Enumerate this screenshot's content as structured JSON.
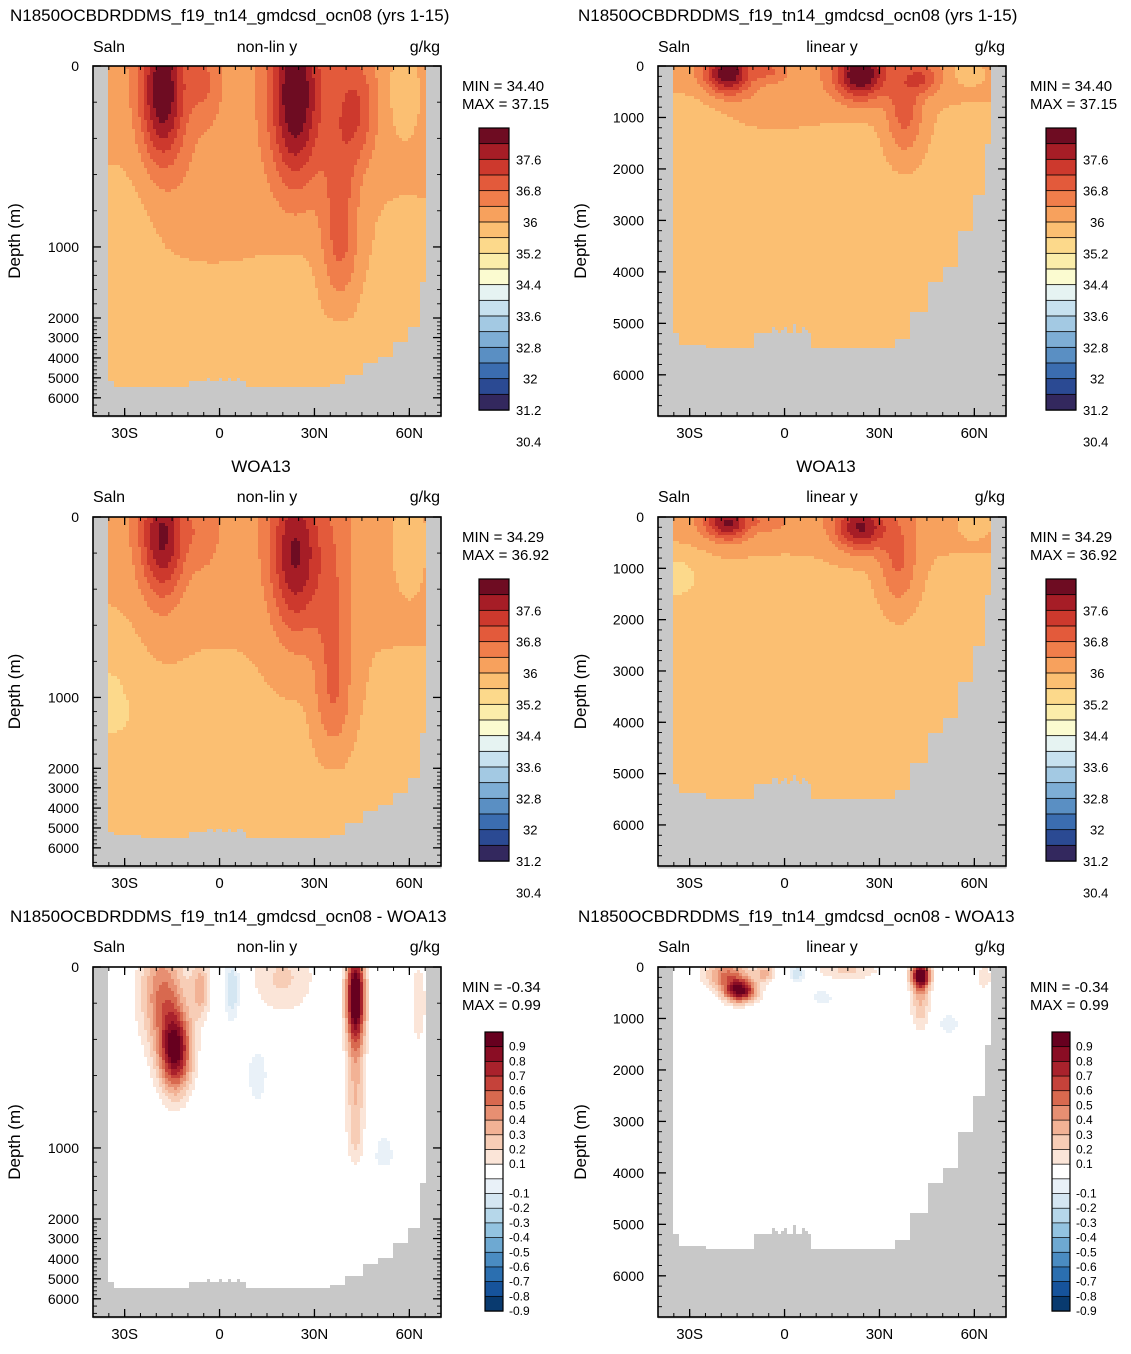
{
  "figure": {
    "colors": {
      "land": "#c8c8c8",
      "salinity_levels": [
        "#33285e",
        "#2b4a93",
        "#3b6db0",
        "#5a8fc3",
        "#7eaed5",
        "#a3c9e3",
        "#c7e1ef",
        "#e6f3f2",
        "#fbfbd0",
        "#fbedaa",
        "#fcd98b",
        "#fbbf72",
        "#f7a15d",
        "#f07e4b",
        "#e35a3b",
        "#cd392d",
        "#a61d26",
        "#6e0c22"
      ],
      "anomaly_levels": [
        "#093a6f",
        "#16539b",
        "#2b6fb0",
        "#4a8cc2",
        "#6ea9d2",
        "#93c3e0",
        "#b6d7ea",
        "#d4e6f2",
        "#e9f1f8",
        "#ffffff",
        "#fbe5d8",
        "#f7cdb6",
        "#f2b295",
        "#e78f72",
        "#d8694f",
        "#c5423a",
        "#a9222c",
        "#8a0d24",
        "#67001f"
      ]
    },
    "panels": [
      {
        "id": "model-nonlin",
        "title": "N1850OCBDRDDMS_f19_tn14_gmdcsd_ocn08 (yrs 1-15)",
        "left_label": "Saln",
        "center_label": "non-lin y",
        "right_label": "g/kg",
        "min_text": "MIN =  34.40",
        "max_text": "MAX =  37.15",
        "ylabel": "Depth (m)"
      },
      {
        "id": "model-linear",
        "title": "N1850OCBDRDDMS_f19_tn14_gmdcsd_ocn08 (yrs 1-15)",
        "left_label": "Saln",
        "center_label": "linear y",
        "right_label": "g/kg",
        "min_text": "MIN =  34.40",
        "max_text": "MAX =  37.15",
        "ylabel": "Depth (m)"
      },
      {
        "id": "obs-nonlin",
        "title": "WOA13",
        "left_label": "Saln",
        "center_label": "non-lin y",
        "right_label": "g/kg",
        "min_text": "MIN =  34.29",
        "max_text": "MAX =  36.92",
        "ylabel": "Depth (m)"
      },
      {
        "id": "obs-linear",
        "title": "WOA13",
        "left_label": "Saln",
        "center_label": "linear y",
        "right_label": "g/kg",
        "min_text": "MIN =  34.29",
        "max_text": "MAX =  36.92",
        "ylabel": "Depth (m)"
      },
      {
        "id": "diff-nonlin",
        "title": "N1850OCBDRDDMS_f19_tn14_gmdcsd_ocn08 - WOA13",
        "left_label": "Saln",
        "center_label": "non-lin y",
        "right_label": "g/kg",
        "min_text": "MIN =  -0.34",
        "max_text": "MAX =   0.99",
        "ylabel": "Depth (m)"
      },
      {
        "id": "diff-linear",
        "title": "N1850OCBDRDDMS_f19_tn14_gmdcsd_ocn08 - WOA13",
        "left_label": "Saln",
        "center_label": "linear y",
        "right_label": "g/kg",
        "min_text": "MIN =  -0.34",
        "max_text": "MAX =   0.99",
        "ylabel": "Depth (m)"
      }
    ]
  },
  "chart_data": [
    {
      "type": "heatmap",
      "panel": "model-nonlin",
      "variable": "Saln",
      "units": "g/kg",
      "x_ticks": [
        -30,
        0,
        30,
        60
      ],
      "x_tick_labels": [
        "30S",
        "0",
        "30N",
        "60N"
      ],
      "xlim": [
        -40,
        70
      ],
      "y_scale": "non-linear",
      "y_ticks": [
        0,
        1000,
        2000,
        3000,
        4000,
        5000,
        6000
      ],
      "y_tick_labels": [
        "0",
        "1000",
        "2000",
        "3000",
        "4000",
        "5000",
        "6000"
      ],
      "ylim": [
        0,
        6500
      ],
      "min": 34.4,
      "max": 37.15,
      "colorbar_labels": [
        "37.6",
        "36.8",
        "36",
        "35.2",
        "34.4",
        "33.6",
        "32.8",
        "32",
        "31.2",
        "30.4"
      ]
    },
    {
      "type": "heatmap",
      "panel": "model-linear",
      "variable": "Saln",
      "units": "g/kg",
      "x_ticks": [
        -30,
        0,
        30,
        60
      ],
      "x_tick_labels": [
        "30S",
        "0",
        "30N",
        "60N"
      ],
      "xlim": [
        -40,
        70
      ],
      "y_scale": "linear",
      "y_ticks": [
        0,
        1000,
        2000,
        3000,
        4000,
        5000,
        6000
      ],
      "y_tick_labels": [
        "0",
        "1000",
        "2000",
        "3000",
        "4000",
        "5000",
        "6000"
      ],
      "ylim": [
        0,
        6800
      ],
      "min": 34.4,
      "max": 37.15,
      "colorbar_labels": [
        "37.6",
        "36.8",
        "36",
        "35.2",
        "34.4",
        "33.6",
        "32.8",
        "32",
        "31.2",
        "30.4"
      ]
    },
    {
      "type": "heatmap",
      "panel": "obs-nonlin",
      "variable": "Saln",
      "units": "g/kg",
      "x_ticks": [
        -30,
        0,
        30,
        60
      ],
      "x_tick_labels": [
        "30S",
        "0",
        "30N",
        "60N"
      ],
      "xlim": [
        -40,
        70
      ],
      "y_scale": "non-linear",
      "y_ticks": [
        0,
        1000,
        2000,
        3000,
        4000,
        5000,
        6000
      ],
      "y_tick_labels": [
        "0",
        "1000",
        "2000",
        "3000",
        "4000",
        "5000",
        "6000"
      ],
      "ylim": [
        0,
        6500
      ],
      "min": 34.29,
      "max": 36.92,
      "colorbar_labels": [
        "37.6",
        "36.8",
        "36",
        "35.2",
        "34.4",
        "33.6",
        "32.8",
        "32",
        "31.2",
        "30.4"
      ]
    },
    {
      "type": "heatmap",
      "panel": "obs-linear",
      "variable": "Saln",
      "units": "g/kg",
      "x_ticks": [
        -30,
        0,
        30,
        60
      ],
      "x_tick_labels": [
        "30S",
        "0",
        "30N",
        "60N"
      ],
      "xlim": [
        -40,
        70
      ],
      "y_scale": "linear",
      "y_ticks": [
        0,
        1000,
        2000,
        3000,
        4000,
        5000,
        6000
      ],
      "y_tick_labels": [
        "0",
        "1000",
        "2000",
        "3000",
        "4000",
        "5000",
        "6000"
      ],
      "ylim": [
        0,
        6800
      ],
      "min": 34.29,
      "max": 36.92,
      "colorbar_labels": [
        "37.6",
        "36.8",
        "36",
        "35.2",
        "34.4",
        "33.6",
        "32.8",
        "32",
        "31.2",
        "30.4"
      ]
    },
    {
      "type": "heatmap",
      "panel": "diff-nonlin",
      "variable": "Saln",
      "units": "g/kg",
      "x_ticks": [
        -30,
        0,
        30,
        60
      ],
      "x_tick_labels": [
        "30S",
        "0",
        "30N",
        "60N"
      ],
      "xlim": [
        -40,
        70
      ],
      "y_scale": "non-linear",
      "y_ticks": [
        0,
        1000,
        2000,
        3000,
        4000,
        5000,
        6000
      ],
      "y_tick_labels": [
        "0",
        "1000",
        "2000",
        "3000",
        "4000",
        "5000",
        "6000"
      ],
      "ylim": [
        0,
        6500
      ],
      "min": -0.34,
      "max": 0.99,
      "colorbar_labels": [
        "0.9",
        "0.8",
        "0.7",
        "0.6",
        "0.5",
        "0.4",
        "0.3",
        "0.2",
        "0.1",
        "-0.1",
        "-0.2",
        "-0.3",
        "-0.4",
        "-0.5",
        "-0.6",
        "-0.7",
        "-0.8",
        "-0.9"
      ]
    },
    {
      "type": "heatmap",
      "panel": "diff-linear",
      "variable": "Saln",
      "units": "g/kg",
      "x_ticks": [
        -30,
        0,
        30,
        60
      ],
      "x_tick_labels": [
        "30S",
        "0",
        "30N",
        "60N"
      ],
      "xlim": [
        -40,
        70
      ],
      "y_scale": "linear",
      "y_ticks": [
        0,
        1000,
        2000,
        3000,
        4000,
        5000,
        6000
      ],
      "y_tick_labels": [
        "0",
        "1000",
        "2000",
        "3000",
        "4000",
        "5000",
        "6000"
      ],
      "ylim": [
        0,
        6800
      ],
      "min": -0.34,
      "max": 0.99,
      "colorbar_labels": [
        "0.9",
        "0.8",
        "0.7",
        "0.6",
        "0.5",
        "0.4",
        "0.3",
        "0.2",
        "0.1",
        "-0.1",
        "-0.2",
        "-0.3",
        "-0.4",
        "-0.5",
        "-0.6",
        "-0.7",
        "-0.8",
        "-0.9"
      ]
    }
  ]
}
